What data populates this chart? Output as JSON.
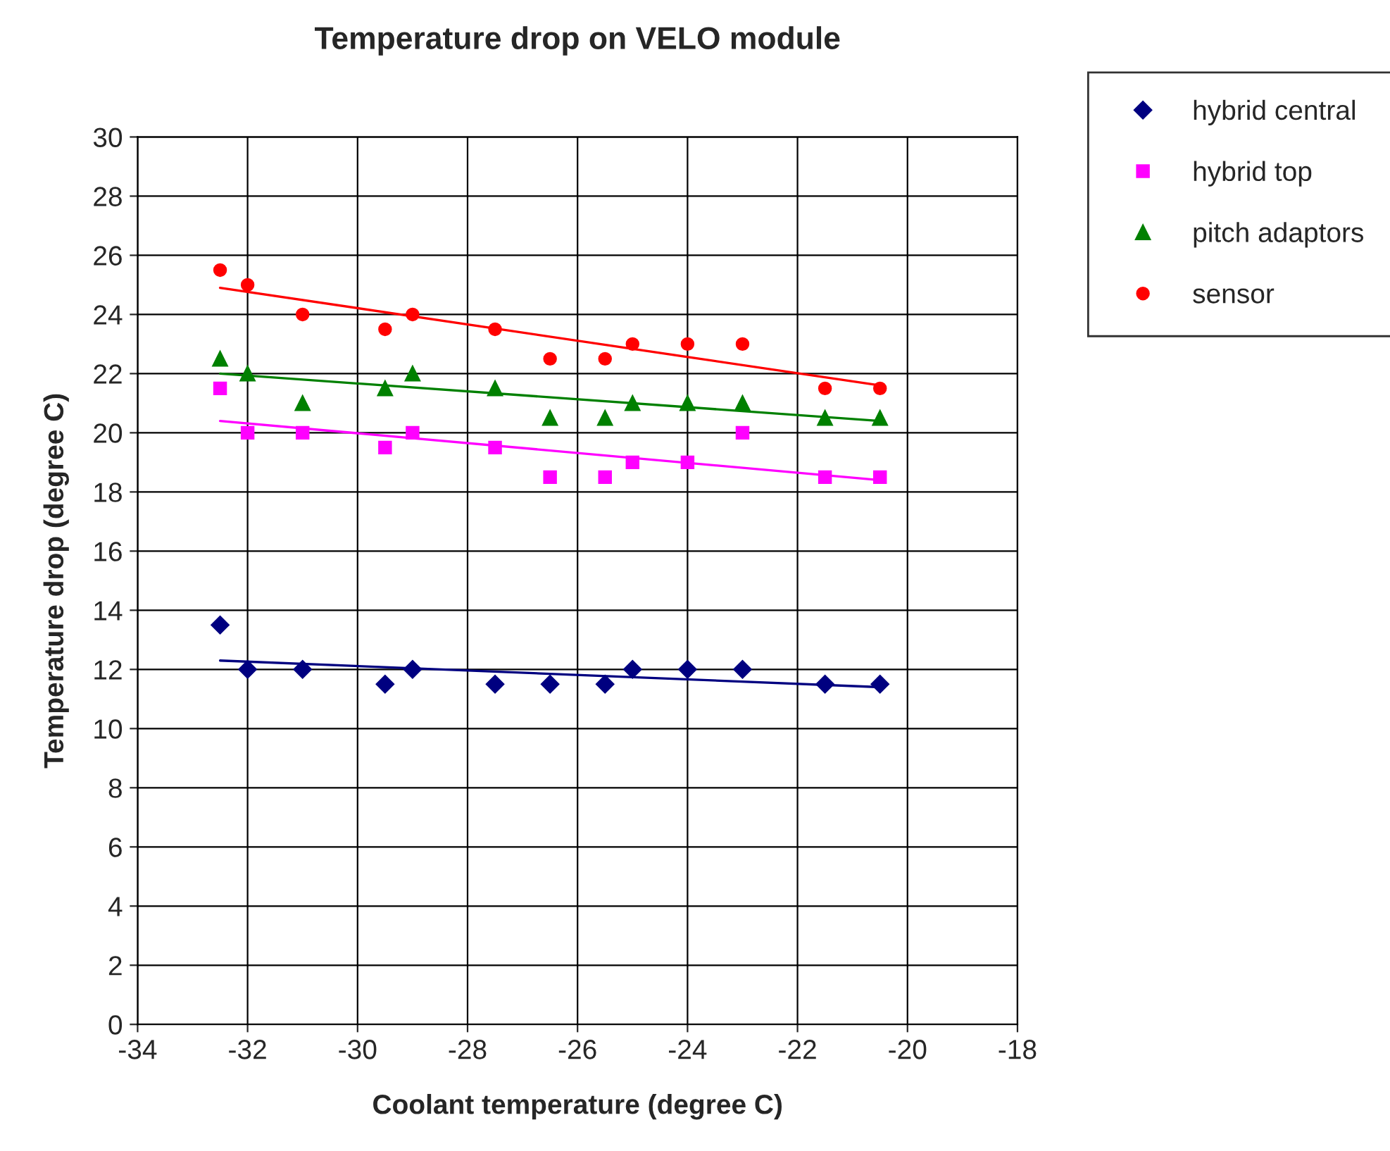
{
  "chart_data": {
    "type": "scatter",
    "title": "Temperature drop on VELO module",
    "xlabel": "Coolant temperature (degree C)",
    "ylabel": "Temperature drop (degree C)",
    "x": [
      -32.5,
      -32,
      -31,
      -29.5,
      -29,
      -27.5,
      -26.5,
      -25.5,
      -25,
      -24,
      -23,
      -21.5,
      -20.5
    ],
    "series": [
      {
        "name": "hybrid central",
        "color": "#000080",
        "marker": "diamond",
        "values": [
          13.5,
          12,
          12,
          11.5,
          12,
          11.5,
          11.5,
          11.5,
          12,
          12,
          12,
          11.5,
          11.5
        ]
      },
      {
        "name": "hybrid top",
        "color": "#ff00ff",
        "marker": "square",
        "values": [
          21.5,
          20,
          20,
          19.5,
          20,
          19.5,
          18.5,
          18.5,
          19,
          19,
          20,
          18.5,
          18.5
        ]
      },
      {
        "name": "pitch adaptors",
        "color": "#008000",
        "marker": "triangle",
        "values": [
          22.5,
          22,
          21,
          21.5,
          22,
          21.5,
          20.5,
          20.5,
          21,
          21,
          21,
          20.5,
          20.5
        ]
      },
      {
        "name": "sensor",
        "color": "#ff0000",
        "marker": "circle",
        "values": [
          25.5,
          25,
          24,
          23.5,
          24,
          23.5,
          22.5,
          22.5,
          23,
          23,
          23,
          21.5,
          21.5
        ]
      },
      {
        "type": "line",
        "color": "#000080",
        "marker": "none",
        "values": [
          12.3,
          null,
          null,
          null,
          null,
          null,
          null,
          null,
          null,
          null,
          null,
          null,
          11.4
        ]
      },
      {
        "type": "line",
        "color": "#ff00ff",
        "marker": "none",
        "values": [
          20.4,
          null,
          null,
          null,
          null,
          null,
          null,
          null,
          null,
          null,
          null,
          null,
          18.4
        ]
      },
      {
        "type": "line",
        "color": "#008000",
        "marker": "none",
        "values": [
          22.0,
          null,
          null,
          null,
          null,
          null,
          null,
          null,
          null,
          null,
          null,
          null,
          20.4
        ]
      },
      {
        "type": "line",
        "color": "#ff0000",
        "marker": "none",
        "values": [
          24.9,
          null,
          null,
          null,
          null,
          null,
          null,
          null,
          null,
          null,
          null,
          null,
          21.6
        ]
      }
    ],
    "xlim": [
      -34,
      -18
    ],
    "xticks": [
      -34,
      -32,
      -30,
      -28,
      -26,
      -24,
      -22,
      -20,
      -18
    ],
    "ylim": [
      0,
      30
    ],
    "yticks": [
      0,
      2,
      4,
      6,
      8,
      10,
      12,
      14,
      16,
      18,
      20,
      22,
      24,
      26,
      28,
      30
    ],
    "grid": true,
    "legend": "top right"
  }
}
